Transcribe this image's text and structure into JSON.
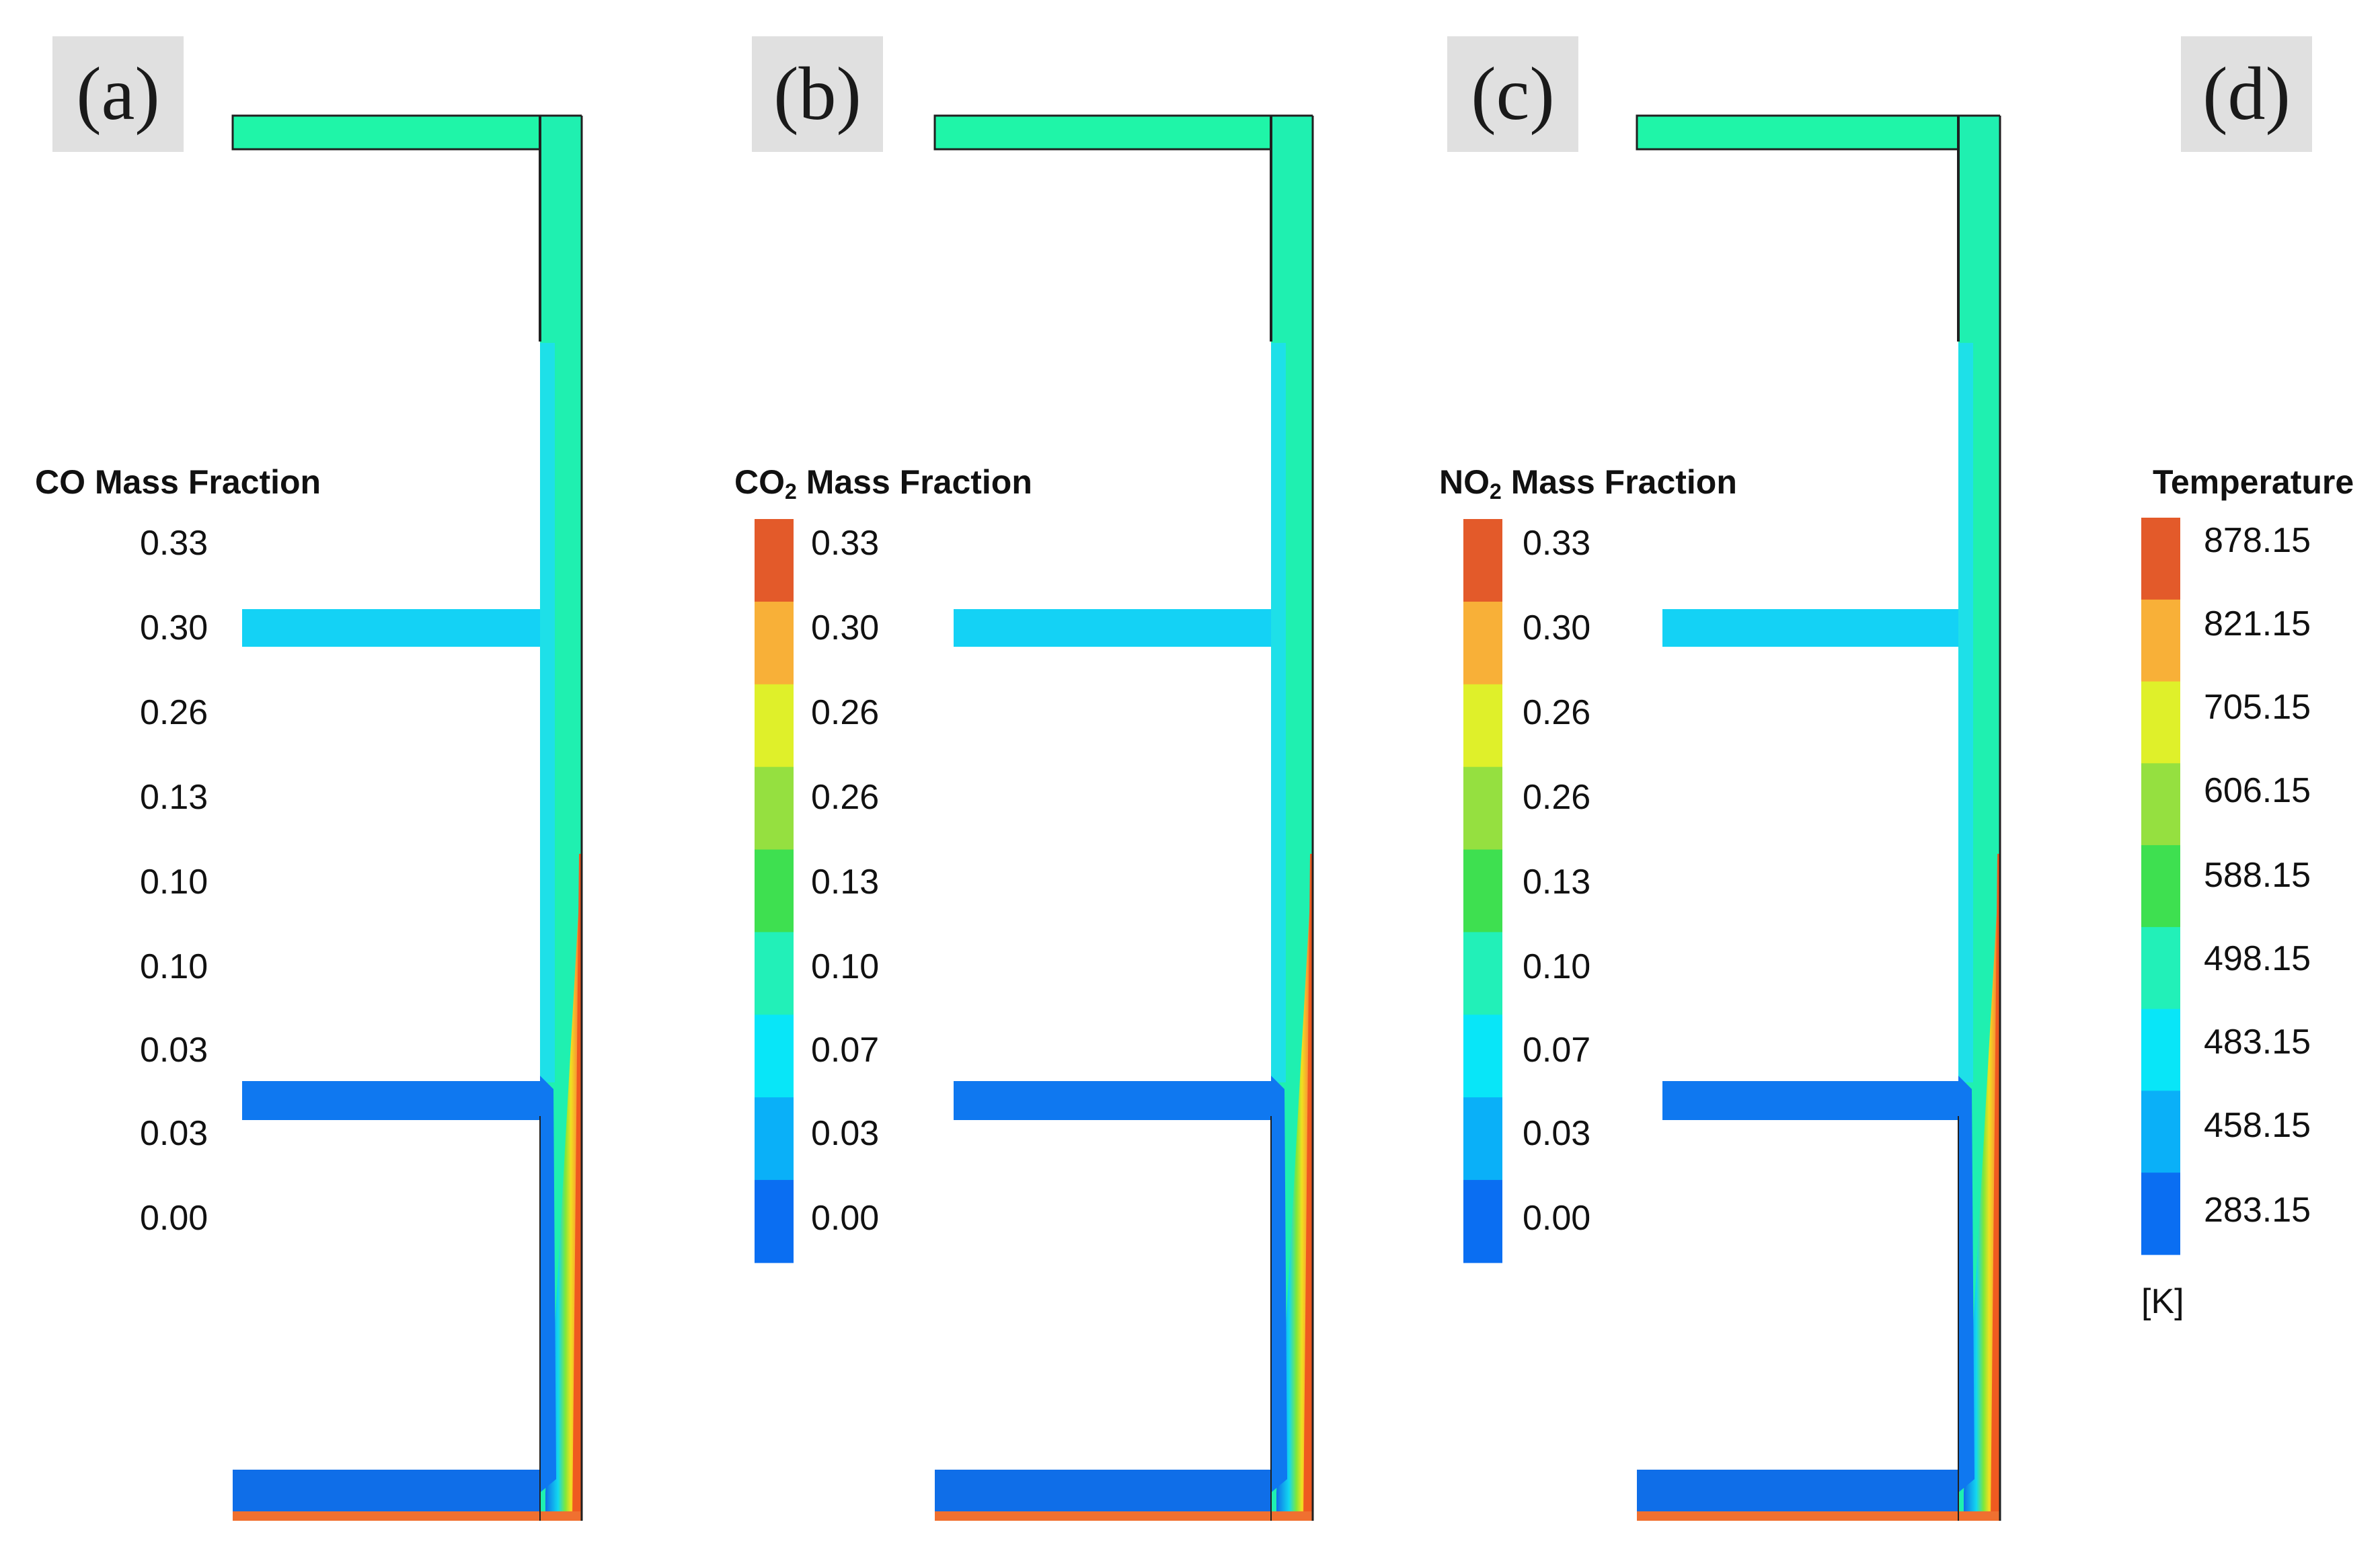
{
  "panels": [
    {
      "tag": "(a)",
      "legend": {
        "title_main": "CO Mass Fraction",
        "title_sub": "",
        "title_rest": "",
        "values": [
          "0.33",
          "0.30",
          "0.26",
          "0.13",
          "0.10",
          "0.10",
          "0.03",
          "0.03",
          "0.00"
        ],
        "show_colorbar": false,
        "unit": ""
      }
    },
    {
      "tag": "(b)",
      "legend": {
        "title_main": "CO",
        "title_sub": "2",
        "title_rest": " Mass Fraction",
        "values": [
          "0.33",
          "0.30",
          "0.26",
          "0.26",
          "0.13",
          "0.10",
          "0.07",
          "0.03",
          "0.00"
        ],
        "show_colorbar": true,
        "unit": ""
      }
    },
    {
      "tag": "(c)",
      "legend": {
        "title_main": "NO",
        "title_sub": "2",
        "title_rest": " Mass Fraction",
        "values": [
          "0.33",
          "0.30",
          "0.26",
          "0.26",
          "0.13",
          "0.10",
          "0.07",
          "0.03",
          "0.00"
        ],
        "show_colorbar": true,
        "unit": ""
      }
    },
    {
      "tag": "(d)",
      "legend": {
        "title_main": "Temperature",
        "title_sub": "",
        "title_rest": "",
        "values": [
          "878.15",
          "821.15",
          "705.15",
          "606.15",
          "588.15",
          "498.15",
          "483.15",
          "458.15",
          "283.15"
        ],
        "show_colorbar": true,
        "unit": "[K]"
      }
    }
  ],
  "colorbar_colors": [
    "#e35a2a",
    "#f8b038",
    "#dff02a",
    "#95e040",
    "#3ee050",
    "#22f0b8",
    "#08e6f8",
    "#0ab0f8",
    "#0a6ef2"
  ],
  "domain_colors": {
    "top_inlet": "#1ff5a8",
    "mid_inlet": "#14d2f5",
    "low_inlet": "#0f78f0",
    "bottom_inlet": "#0f6ee8",
    "vertical_channel": "#1ff0b0",
    "vertical_channel_upper_left": "#1ee0e8",
    "hot_wall": "#ef5a20",
    "bottom_strip": "#f07030",
    "outline": "#202020"
  }
}
